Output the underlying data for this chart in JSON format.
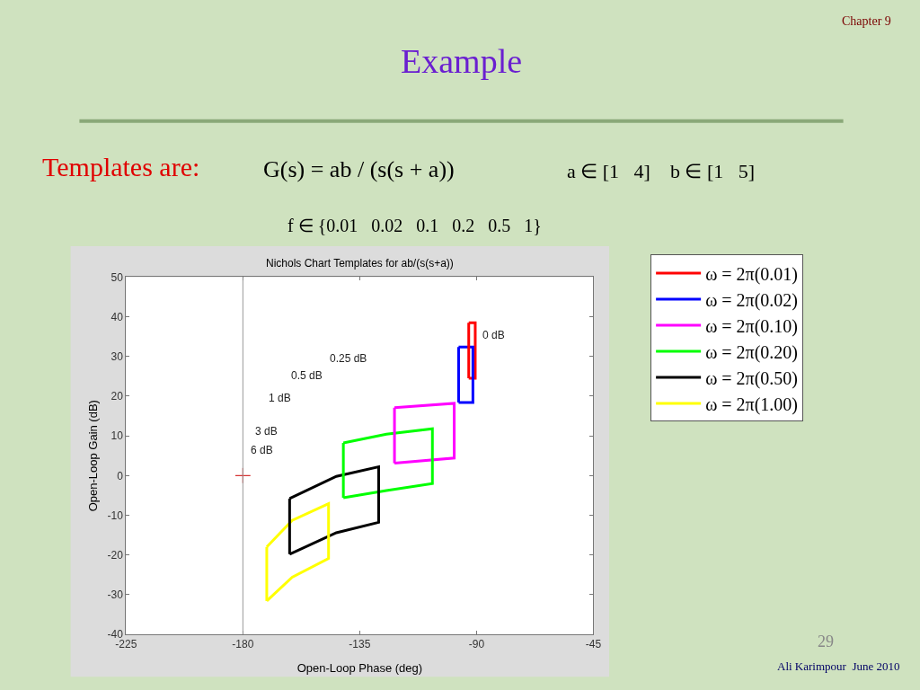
{
  "chart_data": {
    "type": "line",
    "title": "Example",
    "subtitle": "Nichols Chart Templates for ab/(s(s+a))",
    "xlabel": "Open-Loop Phase (deg)",
    "ylabel": "Open-Loop Gain (dB)",
    "xlim": [
      -225,
      -45
    ],
    "xticks": [
      -225,
      -180,
      -135,
      -90,
      -45
    ],
    "ylim": [
      -40,
      50
    ],
    "yticks": [
      -40,
      -30,
      -20,
      -10,
      0,
      10,
      20,
      30,
      40,
      50
    ],
    "legend": "right",
    "marker": "none",
    "line_style": "solid",
    "series": [
      {
        "name": "ω = 2π(0.01)",
        "color": "#ff0000",
        "x": [
          -93,
          -90.5,
          -90.5,
          -93
        ],
        "values": [
          38.5,
          38.5,
          24.5,
          24.5
        ]
      },
      {
        "name": "ω = 2π(0.02)",
        "color": "#0000ff",
        "x": [
          -96.9,
          -91.4,
          -91.4,
          -96.9
        ],
        "values": [
          32.4,
          32.4,
          18.4,
          18.4
        ]
      },
      {
        "name": "ω = 2π(0.10)",
        "color": "#ff00ff",
        "x": [
          -121.6,
          -98.6,
          -98.6,
          -121.6
        ],
        "values": [
          17.1,
          18.2,
          4.4,
          3.1
        ]
      },
      {
        "name": "ω = 2π(0.20)",
        "color": "#00ff00",
        "x": [
          -141.3,
          -124.7,
          -107,
          -107,
          -124.7,
          -141.3
        ],
        "values": [
          8.2,
          10.4,
          11.8,
          -2,
          -3.8,
          -5.6
        ]
      },
      {
        "name": "ω = 2π(0.50)",
        "color": "#000000",
        "x": [
          -162,
          -144,
          -127.7,
          -127.7,
          -144,
          -162
        ],
        "values": [
          -5.8,
          -0.2,
          2.2,
          -11.8,
          -14.4,
          -19.8
        ]
      },
      {
        "name": "ω = 2π(1.00)",
        "color": "#ffff00",
        "x": [
          -170.8,
          -161,
          -147,
          -147,
          -161,
          -170.8
        ],
        "values": [
          -18,
          -11.3,
          -7.1,
          -20.9,
          -25.6,
          -31.6
        ]
      },
      {
        "color": "#ff0000",
        "x": [
          -93,
          -93
        ],
        "values": [
          24.5,
          38.5
        ]
      },
      {
        "color": "#0000ff",
        "x": [
          -96.9,
          -96.9
        ],
        "values": [
          18.4,
          32.4
        ]
      },
      {
        "color": "#ff00ff",
        "x": [
          -121.6,
          -121.6
        ],
        "values": [
          3.1,
          17.1
        ]
      },
      {
        "color": "#00ff00",
        "x": [
          -141.3,
          -141.3
        ],
        "values": [
          -5.6,
          8.2
        ]
      },
      {
        "color": "#000000",
        "x": [
          -162,
          -162
        ],
        "values": [
          -19.8,
          -5.8
        ]
      },
      {
        "color": "#ffff00",
        "x": [
          -170.8,
          -170.8
        ],
        "values": [
          -31.6,
          -18
        ]
      },
      {
        "type": "scatter",
        "marker": "cross",
        "color": "#cc0000",
        "x": [
          -180
        ],
        "values": [
          0
        ]
      }
    ],
    "ref_lines": [
      {
        "axis": "x",
        "value": -180,
        "color": "#999999"
      }
    ],
    "annotations": [
      "0 dB",
      "0.25 dB",
      "0.5 dB",
      "1 dB",
      "3 dB",
      "6 dB",
      "Chapter 9",
      "Templates are:",
      "G(s) = ab / (s(s + a))",
      "a ∈ [1   4]    b ∈ [1   5]",
      "f ∈ {0.01   0.02   0.1   0.2   0.5   1}",
      "29",
      "Ali Karimpour  June 2010"
    ]
  }
}
